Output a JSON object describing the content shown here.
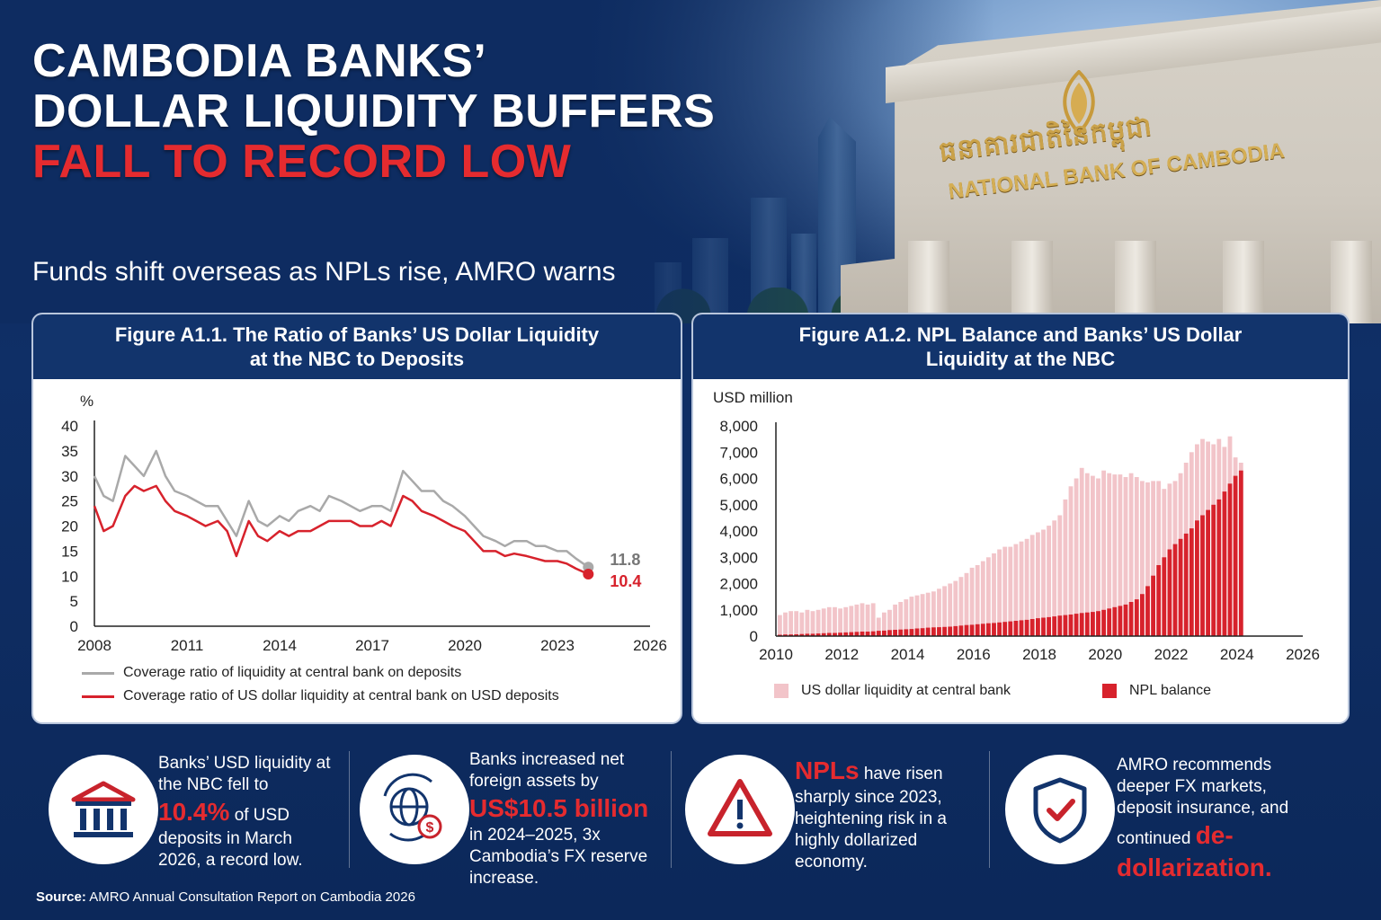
{
  "header": {
    "title_line1": "CAMBODIA BANKS’",
    "title_line2": "DOLLAR LIQUIDITY BUFFERS",
    "title_line3": "FALL TO RECORD LOW",
    "subtitle": "Funds shift overseas as NPLs rise, AMRO warns",
    "building_sign_en": "NATIONAL BANK OF CAMBODIA",
    "building_sign_km": "ធនាគារជាតិនៃកម្ពុជា"
  },
  "colors": {
    "navy": "#12346c",
    "red": "#d7222c",
    "gray": "#a9a9a9",
    "pink": "#f2c4c9"
  },
  "chart_data": [
    {
      "type": "line",
      "title": "Figure A1.1. The Ratio of Banks’ US Dollar Liquidity at the NBC to Deposits",
      "ylabel": "%",
      "ylim": [
        0,
        40
      ],
      "yticks": [
        "0",
        "5",
        "10",
        "15",
        "20",
        "25",
        "30",
        "35",
        "40"
      ],
      "xlim": [
        2008,
        2026
      ],
      "xticks": [
        "2008",
        "2011",
        "2014",
        "2017",
        "2020",
        "2023",
        "2026"
      ],
      "series": [
        {
          "name": "Coverage ratio of liquidity at central bank on deposits",
          "color": "#a9a9a9",
          "x": [
            2008,
            2008.3,
            2008.6,
            2009,
            2009.3,
            2009.6,
            2010,
            2010.3,
            2010.6,
            2011,
            2011.3,
            2011.6,
            2012,
            2012.3,
            2012.6,
            2013,
            2013.3,
            2013.6,
            2014,
            2014.3,
            2014.6,
            2015,
            2015.3,
            2015.6,
            2016,
            2016.3,
            2016.6,
            2017,
            2017.3,
            2017.6,
            2018,
            2018.3,
            2018.6,
            2019,
            2019.3,
            2019.6,
            2020,
            2020.3,
            2020.6,
            2021,
            2021.3,
            2021.6,
            2022,
            2022.3,
            2022.6,
            2023,
            2023.3,
            2023.6,
            2024
          ],
          "values": [
            30,
            26,
            25,
            34,
            32,
            30,
            35,
            30,
            27,
            26,
            25,
            24,
            24,
            21,
            18,
            25,
            21,
            20,
            22,
            21,
            23,
            24,
            23,
            26,
            25,
            24,
            23,
            24,
            24,
            23,
            31,
            29,
            27,
            27,
            25,
            24,
            22,
            20,
            18,
            17,
            16,
            17,
            17,
            16,
            16,
            15,
            15,
            13.5,
            11.8
          ]
        },
        {
          "name": "Coverage ratio of US dollar liquidity at central bank on USD deposits",
          "color": "#d7222c",
          "x": [
            2008,
            2008.3,
            2008.6,
            2009,
            2009.3,
            2009.6,
            2010,
            2010.3,
            2010.6,
            2011,
            2011.3,
            2011.6,
            2012,
            2012.3,
            2012.6,
            2013,
            2013.3,
            2013.6,
            2014,
            2014.3,
            2014.6,
            2015,
            2015.3,
            2015.6,
            2016,
            2016.3,
            2016.6,
            2017,
            2017.3,
            2017.6,
            2018,
            2018.3,
            2018.6,
            2019,
            2019.3,
            2019.6,
            2020,
            2020.3,
            2020.6,
            2021,
            2021.3,
            2021.6,
            2022,
            2022.3,
            2022.6,
            2023,
            2023.3,
            2023.6,
            2024
          ],
          "values": [
            24,
            19,
            20,
            26,
            28,
            27,
            28,
            25,
            23,
            22,
            21,
            20,
            21,
            19,
            14,
            21,
            18,
            17,
            19,
            18,
            19,
            19,
            20,
            21,
            21,
            21,
            20,
            20,
            21,
            20,
            26,
            25,
            23,
            22,
            21,
            20,
            19,
            17,
            15,
            15,
            14,
            14.5,
            14,
            13.5,
            13,
            13,
            12.5,
            11.5,
            10.4
          ]
        }
      ],
      "end_labels": [
        "11.8",
        "10.4"
      ],
      "legend_placement": "bottom"
    },
    {
      "type": "bar",
      "title": "Figure A1.2. NPL Balance and Banks’ US Dollar Liquidity at the NBC",
      "ylabel": "USD million",
      "ylim": [
        0,
        8000
      ],
      "yticks": [
        "0",
        "1,000",
        "2,000",
        "3,000",
        "4,000",
        "5,000",
        "6,000",
        "7,000",
        "8,000"
      ],
      "xlim": [
        2010,
        2026
      ],
      "xticks": [
        "2010",
        "2012",
        "2014",
        "2016",
        "2018",
        "2020",
        "2022",
        "2024",
        "2026"
      ],
      "x_start": 2010,
      "step_years": 0.1667,
      "series": [
        {
          "name": "US dollar liquidity at central bank",
          "color": "#f2c4c9",
          "values": [
            800,
            900,
            950,
            950,
            900,
            1000,
            950,
            1000,
            1050,
            1100,
            1100,
            1050,
            1100,
            1150,
            1200,
            1250,
            1200,
            1250,
            700,
            900,
            1000,
            1200,
            1300,
            1400,
            1500,
            1550,
            1600,
            1650,
            1700,
            1800,
            1900,
            2000,
            2100,
            2250,
            2400,
            2600,
            2700,
            2850,
            3000,
            3150,
            3300,
            3400,
            3400,
            3500,
            3600,
            3700,
            3850,
            3950,
            4050,
            4200,
            4400,
            4600,
            5200,
            5700,
            6000,
            6400,
            6200,
            6100,
            6000,
            6300,
            6200,
            6150,
            6150,
            6050,
            6200,
            6050,
            5900,
            5850,
            5900,
            5900,
            5600,
            5800,
            5900,
            6200,
            6600,
            7000,
            7300,
            7500,
            7400,
            7300,
            7500,
            7200,
            7600,
            6800,
            6600
          ]
        },
        {
          "name": "NPL balance",
          "color": "#d7222c",
          "values": [
            50,
            60,
            60,
            70,
            80,
            90,
            90,
            100,
            110,
            120,
            120,
            130,
            140,
            150,
            160,
            170,
            170,
            180,
            200,
            210,
            230,
            240,
            250,
            260,
            270,
            290,
            300,
            320,
            330,
            340,
            350,
            360,
            380,
            400,
            420,
            430,
            450,
            470,
            490,
            500,
            520,
            540,
            560,
            580,
            600,
            620,
            650,
            680,
            700,
            720,
            750,
            780,
            800,
            820,
            850,
            880,
            900,
            920,
            950,
            1000,
            1050,
            1100,
            1150,
            1200,
            1300,
            1400,
            1600,
            1900,
            2300,
            2700,
            3000,
            3300,
            3500,
            3700,
            3900,
            4100,
            4400,
            4600,
            4800,
            5000,
            5200,
            5500,
            5800,
            6100,
            6300
          ]
        }
      ],
      "legend_placement": "bottom"
    }
  ],
  "facts": [
    {
      "icon": "bank-icon",
      "pre": "Banks’ USD liquidity at the NBC fell to",
      "highlight": "10.4%",
      "post": "of USD deposits in March 2026, a record low."
    },
    {
      "icon": "globe-dollar-icon",
      "pre": "Banks increased net foreign assets by",
      "highlight": "US$10.5 billion",
      "post": "in 2024–2025, 3x Cambodia’s FX reserve increase."
    },
    {
      "icon": "warning-icon",
      "pre": "",
      "highlight": "NPLs",
      "post": "have risen sharply since 2023, heightening risk in a highly dollarized economy."
    },
    {
      "icon": "shield-check-icon",
      "pre": "AMRO recommends deeper FX markets, deposit insurance, and continued",
      "highlight": "de-dollarization.",
      "post": ""
    }
  ],
  "source": {
    "label": "Source:",
    "text": "AMRO Annual Consultation Report on Cambodia 2026"
  }
}
